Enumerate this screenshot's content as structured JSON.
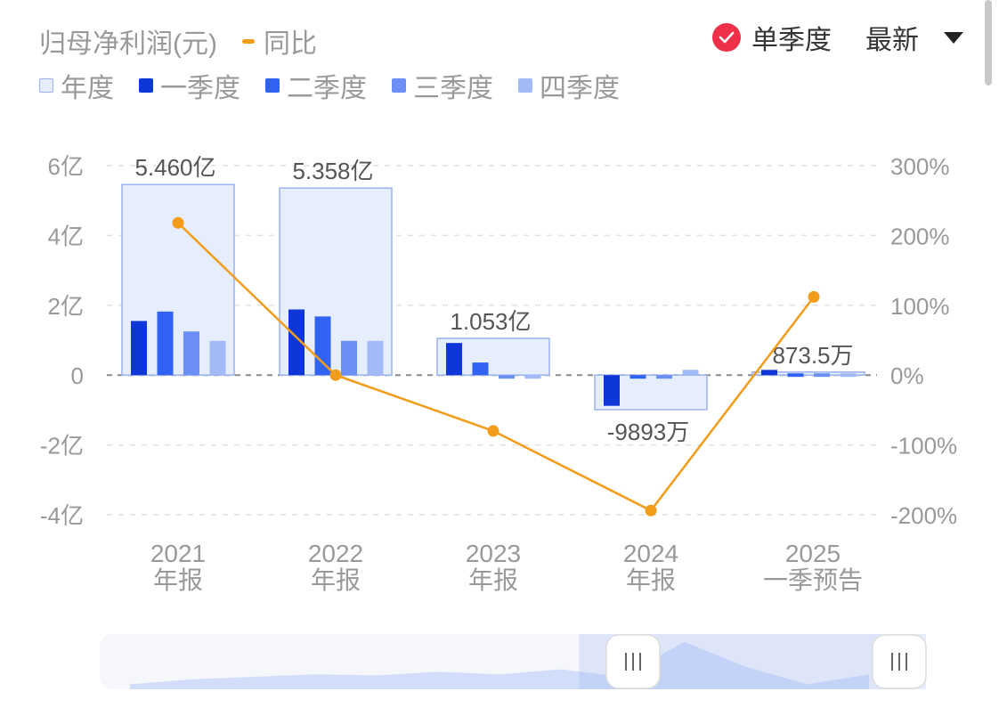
{
  "header": {
    "metric_label": "归母净利润(元)",
    "yoy_label": "同比",
    "option_label": "单季度",
    "latest_label": "最新"
  },
  "legend": {
    "items": [
      {
        "label": "年度",
        "color": "#e6edfd"
      },
      {
        "label": "一季度",
        "color": "#0f37d8"
      },
      {
        "label": "二季度",
        "color": "#3063f2"
      },
      {
        "label": "三季度",
        "color": "#6b8ff5"
      },
      {
        "label": "四季度",
        "color": "#a3baf8"
      }
    ]
  },
  "colors": {
    "line": "#f39c1a",
    "badge": "#ee3148",
    "annual_fill": "#e6edfd",
    "annual_stroke": "#9ab3ef"
  },
  "icons": {
    "check": "check-icon",
    "caret": "caret-down-icon",
    "handle": "grip-handle-icon"
  },
  "chart_data": {
    "type": "bar",
    "categories": [
      "2021\n年报",
      "2022\n年报",
      "2023\n年报",
      "2024\n年报",
      "2025\n一季预告"
    ],
    "y_axis_left": {
      "ticks": [
        "6亿",
        "4亿",
        "2亿",
        "0",
        "-2亿",
        "-4亿"
      ],
      "range": [
        -4,
        6
      ],
      "unit": "亿"
    },
    "y_axis_right": {
      "ticks": [
        "300%",
        "200%",
        "100%",
        "0%",
        "-100%",
        "-200%"
      ],
      "range": [
        -200,
        300
      ],
      "unit": "%"
    },
    "annual": {
      "values": [
        5.46,
        5.358,
        1.053,
        -0.9893,
        0.08735
      ],
      "labels": [
        "5.460亿",
        "5.358亿",
        "1.053亿",
        "-9893万",
        "873.5万"
      ]
    },
    "quarters": [
      [
        1.55,
        1.82,
        1.25,
        0.98
      ],
      [
        1.88,
        1.68,
        0.98,
        0.98
      ],
      [
        0.92,
        0.36,
        -0.1,
        -0.1
      ],
      [
        -0.88,
        -0.1,
        -0.1,
        0.15
      ],
      [
        0.15,
        0.0,
        0.0,
        0.0
      ]
    ],
    "series": [
      {
        "name": "同比",
        "type": "line",
        "values": [
          218,
          0,
          -80,
          -194,
          112
        ]
      }
    ],
    "grid": true
  },
  "slider": {
    "overview": [
      0.1,
      0.2,
      0.25,
      0.3,
      0.28,
      0.35,
      0.3,
      0.4,
      0.25,
      0.95,
      0.45,
      0.1,
      0.3
    ],
    "range_start": 0.58,
    "range_end": 1.0
  }
}
